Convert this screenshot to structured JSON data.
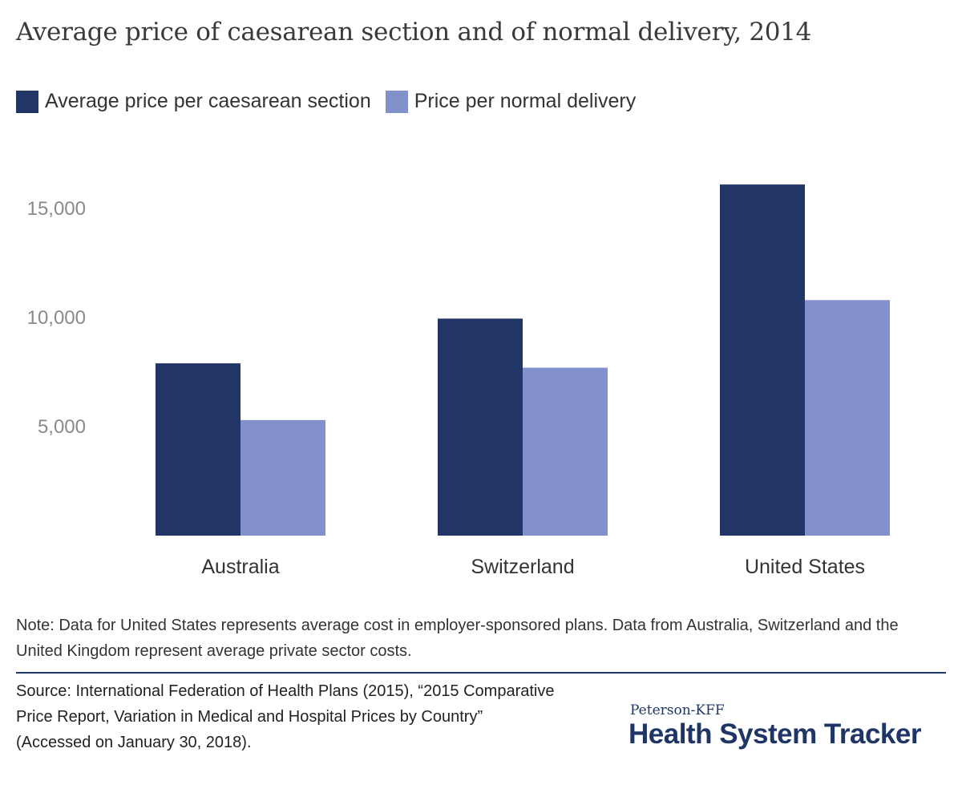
{
  "title": "Average price of caesarean section and of normal delivery, 2014",
  "legend": [
    {
      "label": "Average price per caesarean section",
      "color": "#213566"
    },
    {
      "label": "Price per normal delivery",
      "color": "#8291cc"
    }
  ],
  "chart_data": {
    "type": "bar",
    "categories": [
      "Australia",
      "Switzerland",
      "United States"
    ],
    "series": [
      {
        "name": "Average price per caesarean section",
        "values": [
          7900,
          9950,
          16100
        ],
        "color": "#213566"
      },
      {
        "name": "Price per normal delivery",
        "values": [
          5300,
          7700,
          10800
        ],
        "color": "#8291cc"
      }
    ],
    "yticks": [
      5000,
      10000,
      15000
    ],
    "ytick_labels": [
      "5,000",
      "10,000",
      "15,000"
    ],
    "ylim": [
      0,
      17000
    ],
    "grid": false
  },
  "note": "Note: Data for United States represents average cost in employer-sponsored plans. Data from Australia, Switzerland and the United Kingdom represent average private sector costs.",
  "source": "Source: International Federation of Health Plans (2015), “2015 Comparative Price Report, Variation in Medical and Hospital Prices by Country” (Accessed on January 30, 2018).",
  "brand": {
    "top": "Peterson-KFF",
    "main": "Health System Tracker"
  }
}
